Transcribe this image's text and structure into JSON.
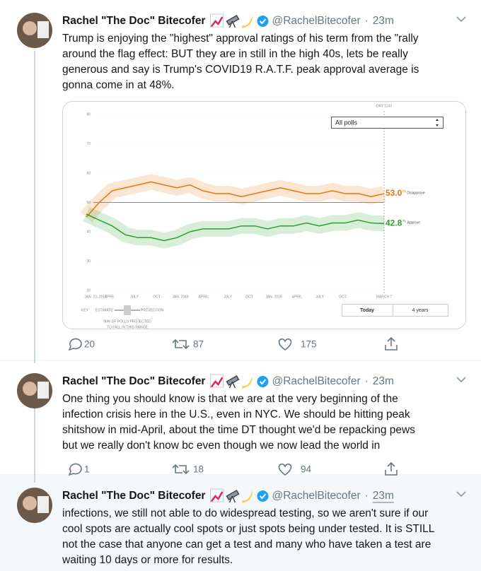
{
  "tweets": [
    {
      "author": {
        "name": "Rachel \"The Doc\" Bitecofer",
        "handle": "@RachelBitecofer"
      },
      "separator": "·",
      "time": "23m",
      "text_lines": [
        "Trump is enjoying the \"highest\" approval ratings of his term from the \"rally",
        "around the flag effect: BUT they are in still in the high 40s, lets be really",
        "generous and say is Trump's COVID19 R.A.T.F. peak approval average is",
        "gonna come in at 48%."
      ],
      "media": {
        "day_label": "DAY 1143",
        "dropdown": "All polls",
        "ylim": [
          20,
          80
        ],
        "yticks": [
          20,
          30,
          40,
          50,
          60,
          70,
          80
        ],
        "x_labels": [
          "JAN. 23, 2017",
          "APRIL",
          "JULY",
          "OCT.",
          "JAN. 2018",
          "APRIL",
          "JULY",
          "OCT.",
          "JAN. 2019",
          "APRIL",
          "JULY",
          "OCT.",
          "MARCH 7"
        ],
        "series": [
          {
            "name": "Disapprove",
            "unit": "%",
            "color": "#e8750b",
            "end_label": "53.0",
            "values": [
              45,
              50,
              54,
              55,
              56,
              57,
              56,
              55,
              56,
              54,
              53,
              53,
              52,
              53,
              54,
              55,
              54,
              53,
              53,
              54,
              53,
              53,
              52,
              53
            ]
          },
          {
            "name": "Approve",
            "unit": "%",
            "color": "#2ca02c",
            "end_label": "42.8",
            "values": [
              46,
              44,
              42,
              39,
              38,
              38,
              37,
              38,
              40,
              41,
              41,
              41,
              42,
              42,
              41,
              42,
              42,
              43,
              42,
              43,
              43,
              44,
              43,
              42.8
            ]
          }
        ],
        "key": {
          "label": "KEY",
          "estimate": "ESTIMATE",
          "projection": "PROJECTION",
          "note": [
            "90% OF POLLS PROJECTED",
            "TO FALL IN THIS RANGE"
          ]
        },
        "buttons": [
          "Today",
          "4 years"
        ]
      },
      "stats": {
        "replies": 20,
        "retweets": 87,
        "likes": 175
      }
    },
    {
      "author": {
        "name": "Rachel \"The Doc\" Bitecofer",
        "handle": "@RachelBitecofer"
      },
      "separator": "·",
      "time": "23m",
      "text_lines": [
        "One thing you should know is that we are at the very beginning of the",
        "infection crisis here in the U.S., even in NYC. We should be hitting peak",
        "shitshow in mid-April, about the time DT thought we'd be repacking pews",
        "but we really don't know bc even though we now lead the world in"
      ],
      "stats": {
        "replies": 1,
        "retweets": 18,
        "likes": 94
      }
    },
    {
      "author": {
        "name": "Rachel \"The Doc\" Bitecofer",
        "handle": "@RachelBitecofer"
      },
      "separator": "·",
      "time": "23m",
      "text_lines": [
        "infections, we still not able to do widespread testing, so we aren't sure if our",
        "cool spots are actually cool spots or just spots being under tested. It is STILL",
        "not the case that anyone can get a test and many who have taken a test are",
        "waiting 10 days or more for results."
      ]
    }
  ]
}
